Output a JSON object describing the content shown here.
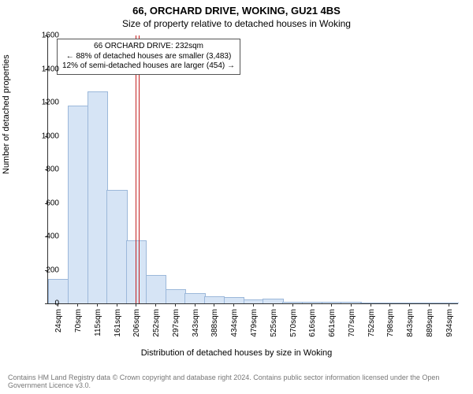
{
  "title_line1": "66, ORCHARD DRIVE, WOKING, GU21 4BS",
  "title_line2": "Size of property relative to detached houses in Woking",
  "ylabel": "Number of detached properties",
  "xlabel": "Distribution of detached houses by size in Woking",
  "footnote": "Contains HM Land Registry data © Crown copyright and database right 2024. Contains public sector information licensed under the Open Government Licence v3.0.",
  "callout": {
    "line1": "66 ORCHARD DRIVE: 232sqm",
    "line2": "← 88% of detached houses are smaller (3,483)",
    "line3": "12% of semi-detached houses are larger (454) →"
  },
  "chart": {
    "type": "histogram",
    "ylim": [
      0,
      1600
    ],
    "ytick_step": 200,
    "xticks": [
      "24sqm",
      "70sqm",
      "115sqm",
      "161sqm",
      "206sqm",
      "252sqm",
      "297sqm",
      "343sqm",
      "388sqm",
      "434sqm",
      "479sqm",
      "525sqm",
      "570sqm",
      "616sqm",
      "661sqm",
      "707sqm",
      "752sqm",
      "798sqm",
      "843sqm",
      "889sqm",
      "934sqm"
    ],
    "values": [
      140,
      1175,
      1260,
      675,
      370,
      165,
      80,
      55,
      40,
      35,
      20,
      25,
      5,
      5,
      3,
      3,
      2,
      2,
      2,
      1,
      1
    ],
    "bar_fill": "#d6e4f5",
    "bar_stroke": "#9cb8da",
    "marker_value_index": 4.57,
    "marker_color": "#c42020",
    "background": "#ffffff",
    "axis_color": "#333333",
    "text_color": "#333333"
  }
}
